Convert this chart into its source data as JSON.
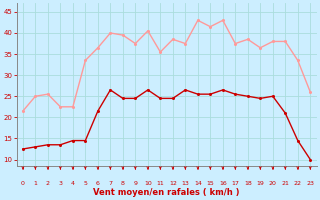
{
  "hours": [
    0,
    1,
    2,
    3,
    4,
    5,
    6,
    7,
    8,
    9,
    10,
    11,
    12,
    13,
    14,
    15,
    16,
    17,
    18,
    19,
    20,
    21,
    22,
    23
  ],
  "wind_avg": [
    12.5,
    13,
    13.5,
    13.5,
    14.5,
    14.5,
    21.5,
    26.5,
    24.5,
    24.5,
    26.5,
    24.5,
    24.5,
    26.5,
    25.5,
    25.5,
    26.5,
    25.5,
    25,
    24.5,
    25,
    21,
    14.5,
    10
  ],
  "wind_gust": [
    21.5,
    25,
    25.5,
    22.5,
    22.5,
    33.5,
    36.5,
    40,
    39.5,
    37.5,
    40.5,
    35.5,
    38.5,
    37.5,
    43,
    41.5,
    43,
    37.5,
    38.5,
    36.5,
    38,
    38,
    33.5,
    26
  ],
  "bg_color": "#cceeff",
  "grid_color": "#aadddd",
  "avg_color": "#cc0000",
  "gust_color": "#ff9999",
  "xlabel": "Vent moyen/en rafales ( km/h )",
  "ylabel_ticks": [
    10,
    15,
    20,
    25,
    30,
    35,
    40,
    45
  ],
  "ylim": [
    8.5,
    47
  ],
  "xlim": [
    -0.5,
    23.5
  ],
  "marker_size": 2.2,
  "line_width": 1.0,
  "xlabel_color": "#cc0000",
  "tick_color": "#cc0000",
  "arrow_color": "#cc0000",
  "spine_color": "#888888"
}
